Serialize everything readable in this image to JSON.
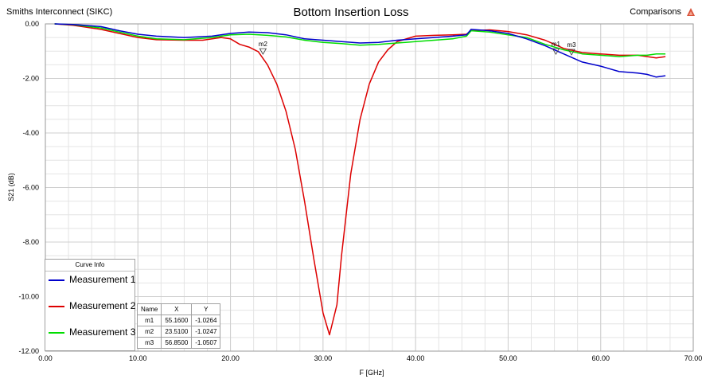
{
  "header": {
    "company": "Smiths Interconnect (SIKC)",
    "title": "Bottom Insertion Loss",
    "comparisons": "Comparisons"
  },
  "legend": {
    "title": "Curve Info",
    "items": [
      {
        "label": "Measurement 1",
        "color": "#0000cc"
      },
      {
        "label": "Measurement 2",
        "color": "#dd0000"
      },
      {
        "label": "Measurement 3",
        "color": "#00dd00"
      }
    ]
  },
  "marker_table": {
    "columns": [
      "Name",
      "X",
      "Y"
    ],
    "rows": [
      [
        "m1",
        "55.1600",
        "-1.0264"
      ],
      [
        "m2",
        "23.5100",
        "-1.0247"
      ],
      [
        "m3",
        "56.8500",
        "-1.0507"
      ]
    ]
  },
  "chart_data": {
    "type": "line",
    "title": "Bottom Insertion Loss",
    "xlabel": "F [GHz]",
    "ylabel": "S21 (dB)",
    "xlim": [
      0,
      70
    ],
    "ylim": [
      -12,
      0
    ],
    "x_ticks": [
      "0.00",
      "10.00",
      "20.00",
      "30.00",
      "40.00",
      "50.00",
      "60.00",
      "70.00"
    ],
    "y_ticks": [
      "0.00",
      "-2.00",
      "-4.00",
      "-6.00",
      "-8.00",
      "-10.00",
      "-12.00"
    ],
    "grid": true,
    "legend_position": "bottom-left",
    "series": [
      {
        "name": "Measurement 1",
        "color": "#0000cc",
        "x": [
          1,
          3,
          6,
          8,
          10,
          12,
          15,
          18,
          20,
          22,
          24,
          26,
          28,
          30,
          32,
          34,
          36,
          38,
          40,
          42,
          44,
          45.5,
          46,
          48,
          50,
          52,
          54,
          56,
          58,
          60,
          62,
          64,
          65,
          66,
          67
        ],
        "y": [
          0.0,
          -0.02,
          -0.1,
          -0.25,
          -0.38,
          -0.45,
          -0.5,
          -0.45,
          -0.35,
          -0.3,
          -0.32,
          -0.4,
          -0.55,
          -0.6,
          -0.65,
          -0.7,
          -0.68,
          -0.6,
          -0.55,
          -0.5,
          -0.45,
          -0.4,
          -0.2,
          -0.25,
          -0.35,
          -0.55,
          -0.8,
          -1.1,
          -1.4,
          -1.55,
          -1.75,
          -1.8,
          -1.85,
          -1.95,
          -1.9
        ]
      },
      {
        "name": "Measurement 2",
        "color": "#dd0000",
        "x": [
          1,
          3,
          6,
          8,
          10,
          12,
          15,
          17,
          19,
          20,
          21,
          22,
          23,
          24,
          25,
          26,
          27,
          28,
          29,
          30,
          30.7,
          31.5,
          32,
          33,
          34,
          35,
          36,
          37,
          38,
          40,
          42,
          44,
          45.5,
          46,
          48,
          50,
          52,
          54,
          56,
          58,
          60,
          62,
          64,
          66,
          67
        ],
        "y": [
          0.0,
          -0.05,
          -0.2,
          -0.35,
          -0.5,
          -0.58,
          -0.6,
          -0.6,
          -0.5,
          -0.55,
          -0.75,
          -0.85,
          -1.02,
          -1.5,
          -2.2,
          -3.2,
          -4.6,
          -6.5,
          -8.6,
          -10.6,
          -11.4,
          -10.3,
          -8.5,
          -5.5,
          -3.5,
          -2.2,
          -1.4,
          -0.95,
          -0.65,
          -0.45,
          -0.42,
          -0.4,
          -0.38,
          -0.25,
          -0.22,
          -0.28,
          -0.4,
          -0.6,
          -0.9,
          -1.05,
          -1.1,
          -1.15,
          -1.15,
          -1.25,
          -1.2
        ]
      },
      {
        "name": "Measurement 3",
        "color": "#00dd00",
        "x": [
          1,
          3,
          6,
          8,
          10,
          12,
          15,
          18,
          20,
          22,
          24,
          26,
          28,
          30,
          32,
          34,
          36,
          38,
          40,
          42,
          44,
          45.5,
          46,
          48,
          50,
          52,
          54,
          56,
          58,
          60,
          62,
          64,
          65,
          66,
          67
        ],
        "y": [
          0.0,
          -0.03,
          -0.15,
          -0.3,
          -0.45,
          -0.55,
          -0.58,
          -0.5,
          -0.4,
          -0.38,
          -0.42,
          -0.48,
          -0.6,
          -0.68,
          -0.72,
          -0.78,
          -0.75,
          -0.7,
          -0.65,
          -0.6,
          -0.55,
          -0.45,
          -0.25,
          -0.3,
          -0.4,
          -0.5,
          -0.75,
          -0.95,
          -1.1,
          -1.15,
          -1.2,
          -1.15,
          -1.15,
          -1.1,
          -1.1
        ]
      }
    ],
    "markers": [
      {
        "name": "m1",
        "x": 55.16,
        "y": -1.0264
      },
      {
        "name": "m2",
        "x": 23.51,
        "y": -1.0247
      },
      {
        "name": "m3",
        "x": 56.85,
        "y": -1.0507
      }
    ]
  }
}
